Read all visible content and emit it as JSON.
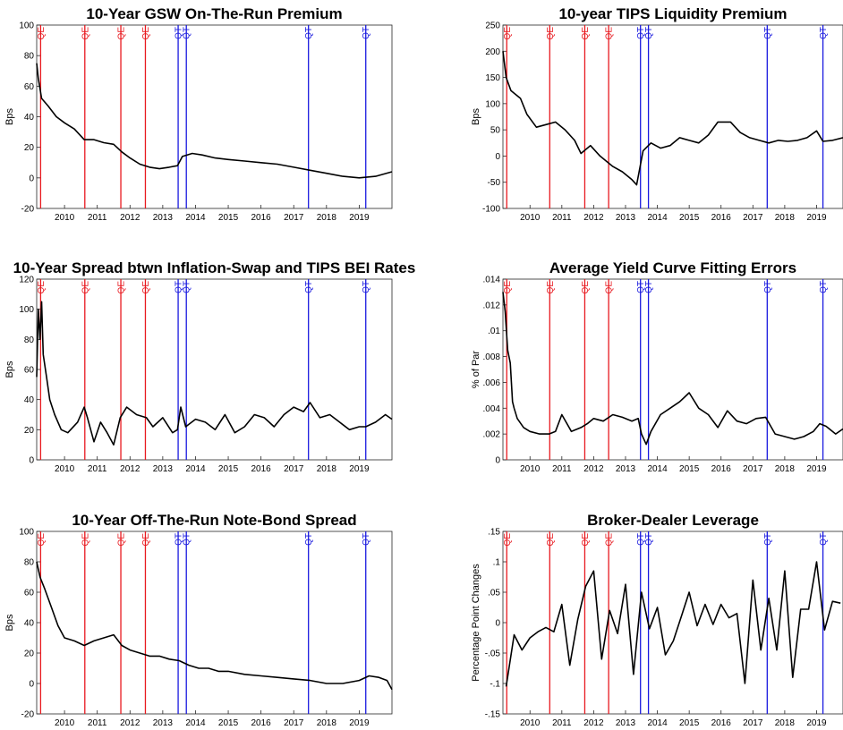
{
  "colors": {
    "line": "#000000",
    "qe": "#e8191f",
    "qt": "#1a1adf",
    "axis": "#262626"
  },
  "chart_data": [
    {
      "type": "line",
      "title": "10-Year GSW On-The-Run Premium",
      "ylabel": "Bps",
      "xlim": [
        2009.15,
        2020.0
      ],
      "ylim": [
        -20,
        100
      ],
      "yticks": [
        -20,
        0,
        20,
        40,
        60,
        80,
        100
      ],
      "xticks": [
        2010,
        2011,
        2012,
        2013,
        2014,
        2015,
        2016,
        2017,
        2018,
        2019
      ],
      "events": [
        {
          "label": "QE",
          "x": 2009.27
        },
        {
          "label": "QE",
          "x": 2010.62
        },
        {
          "label": "QE",
          "x": 2011.72
        },
        {
          "label": "QE",
          "x": 2012.47
        },
        {
          "label": "QT",
          "x": 2013.47
        },
        {
          "label": "QT",
          "x": 2013.72
        },
        {
          "label": "QT",
          "x": 2017.45
        },
        {
          "label": "QT",
          "x": 2019.2
        }
      ],
      "series": [
        {
          "x": [
            2009.15,
            2009.2,
            2009.3,
            2009.5,
            2009.75,
            2010.0,
            2010.3,
            2010.6,
            2010.9,
            2011.2,
            2011.5,
            2011.75,
            2012.0,
            2012.3,
            2012.6,
            2012.9,
            2013.2,
            2013.45,
            2013.6,
            2013.9,
            2014.2,
            2014.6,
            2015.0,
            2015.5,
            2016.0,
            2016.5,
            2017.0,
            2017.5,
            2018.0,
            2018.5,
            2019.0,
            2019.5,
            2020.0
          ],
          "values": [
            75,
            65,
            52,
            47,
            40,
            36,
            32,
            25,
            25,
            23,
            22,
            17,
            13,
            9,
            7,
            6,
            7,
            8,
            14,
            16,
            15,
            13,
            12,
            11,
            10,
            9,
            7,
            5,
            3,
            1,
            0,
            1,
            4
          ]
        }
      ]
    },
    {
      "type": "line",
      "title": "10-year TIPS Liquidity Premium",
      "ylabel": "Bps",
      "xlim": [
        2009.15,
        2019.83
      ],
      "ylim": [
        -100,
        250
      ],
      "yticks": [
        -100,
        -50,
        0,
        50,
        100,
        150,
        200,
        250
      ],
      "xticks": [
        2010,
        2011,
        2012,
        2013,
        2014,
        2015,
        2016,
        2017,
        2018,
        2019
      ],
      "events": [
        {
          "label": "QE",
          "x": 2009.27
        },
        {
          "label": "QE",
          "x": 2010.62
        },
        {
          "label": "QE",
          "x": 2011.72
        },
        {
          "label": "QE",
          "x": 2012.47
        },
        {
          "label": "QT",
          "x": 2013.47
        },
        {
          "label": "QT",
          "x": 2013.72
        },
        {
          "label": "QT",
          "x": 2017.45
        },
        {
          "label": "QT",
          "x": 2019.2
        }
      ],
      "series": [
        {
          "x": [
            2009.15,
            2009.25,
            2009.4,
            2009.7,
            2009.9,
            2010.2,
            2010.5,
            2010.8,
            2011.1,
            2011.4,
            2011.6,
            2011.9,
            2012.2,
            2012.6,
            2012.9,
            2013.2,
            2013.35,
            2013.55,
            2013.8,
            2014.1,
            2014.4,
            2014.7,
            2015.0,
            2015.3,
            2015.6,
            2015.9,
            2016.3,
            2016.6,
            2016.9,
            2017.2,
            2017.5,
            2017.8,
            2018.1,
            2018.4,
            2018.7,
            2019.0,
            2019.2,
            2019.5,
            2019.83
          ],
          "values": [
            200,
            150,
            125,
            110,
            80,
            55,
            60,
            65,
            50,
            30,
            5,
            20,
            0,
            -20,
            -30,
            -45,
            -55,
            10,
            25,
            15,
            20,
            35,
            30,
            25,
            40,
            65,
            65,
            45,
            35,
            30,
            25,
            30,
            28,
            30,
            35,
            48,
            28,
            30,
            35
          ]
        }
      ]
    },
    {
      "type": "line",
      "title": "10-Year Spread btwn Inflation-Swap and TIPS BEI Rates",
      "ylabel": "Bps",
      "xlim": [
        2009.15,
        2020.0
      ],
      "ylim": [
        0,
        120
      ],
      "yticks": [
        0,
        20,
        40,
        60,
        80,
        100,
        120
      ],
      "xticks": [
        2010,
        2011,
        2012,
        2013,
        2014,
        2015,
        2016,
        2017,
        2018,
        2019
      ],
      "events": [
        {
          "label": "QE",
          "x": 2009.27
        },
        {
          "label": "QE",
          "x": 2010.62
        },
        {
          "label": "QE",
          "x": 2011.72
        },
        {
          "label": "QE",
          "x": 2012.47
        },
        {
          "label": "QT",
          "x": 2013.47
        },
        {
          "label": "QT",
          "x": 2013.72
        },
        {
          "label": "QT",
          "x": 2017.45
        },
        {
          "label": "QT",
          "x": 2019.2
        }
      ],
      "series": [
        {
          "x": [
            2009.15,
            2009.2,
            2009.25,
            2009.3,
            2009.35,
            2009.45,
            2009.55,
            2009.7,
            2009.9,
            2010.1,
            2010.4,
            2010.6,
            2010.7,
            2010.9,
            2011.1,
            2011.3,
            2011.5,
            2011.7,
            2011.9,
            2012.2,
            2012.5,
            2012.7,
            2013.0,
            2013.3,
            2013.45,
            2013.55,
            2013.7,
            2014.0,
            2014.3,
            2014.6,
            2014.9,
            2015.2,
            2015.5,
            2015.8,
            2016.1,
            2016.4,
            2016.7,
            2017.0,
            2017.3,
            2017.5,
            2017.8,
            2018.1,
            2018.4,
            2018.7,
            2019.0,
            2019.2,
            2019.5,
            2019.8,
            2020.0
          ],
          "values": [
            55,
            100,
            80,
            105,
            70,
            55,
            40,
            30,
            20,
            18,
            25,
            35,
            28,
            12,
            25,
            18,
            10,
            28,
            35,
            30,
            28,
            22,
            28,
            18,
            20,
            35,
            22,
            27,
            25,
            20,
            30,
            18,
            22,
            30,
            28,
            22,
            30,
            35,
            32,
            38,
            28,
            30,
            25,
            20,
            22,
            22,
            25,
            30,
            27
          ]
        }
      ]
    },
    {
      "type": "line",
      "title": "Average Yield Curve Fitting Errors",
      "ylabel": "% of Par",
      "xlim": [
        2009.15,
        2019.83
      ],
      "ylim": [
        0,
        0.014
      ],
      "yticks": [
        0,
        0.002,
        0.004,
        0.006,
        0.008,
        0.01,
        0.012,
        0.014
      ],
      "xticks": [
        2010,
        2011,
        2012,
        2013,
        2014,
        2015,
        2016,
        2017,
        2018,
        2019
      ],
      "events": [
        {
          "label": "QE",
          "x": 2009.27
        },
        {
          "label": "QE",
          "x": 2010.62
        },
        {
          "label": "QE",
          "x": 2011.72
        },
        {
          "label": "QE",
          "x": 2012.47
        },
        {
          "label": "QT",
          "x": 2013.47
        },
        {
          "label": "QT",
          "x": 2013.72
        },
        {
          "label": "QT",
          "x": 2017.45
        },
        {
          "label": "QT",
          "x": 2019.2
        }
      ],
      "series": [
        {
          "x": [
            2009.15,
            2009.22,
            2009.3,
            2009.38,
            2009.45,
            2009.5,
            2009.6,
            2009.8,
            2010.0,
            2010.3,
            2010.6,
            2010.8,
            2011.0,
            2011.3,
            2011.6,
            2011.8,
            2012.0,
            2012.3,
            2012.6,
            2012.9,
            2013.2,
            2013.4,
            2013.5,
            2013.65,
            2013.8,
            2014.1,
            2014.4,
            2014.7,
            2015.0,
            2015.3,
            2015.6,
            2015.9,
            2016.2,
            2016.5,
            2016.8,
            2017.1,
            2017.4,
            2017.7,
            2018.0,
            2018.3,
            2018.6,
            2018.9,
            2019.1,
            2019.3,
            2019.6,
            2019.83
          ],
          "values": [
            0.013,
            0.0115,
            0.0085,
            0.0075,
            0.0045,
            0.004,
            0.0032,
            0.0025,
            0.0022,
            0.002,
            0.002,
            0.0022,
            0.0035,
            0.0022,
            0.0025,
            0.0028,
            0.0032,
            0.003,
            0.0035,
            0.0033,
            0.003,
            0.0032,
            0.002,
            0.0012,
            0.0022,
            0.0035,
            0.004,
            0.0045,
            0.0052,
            0.004,
            0.0035,
            0.0025,
            0.0038,
            0.003,
            0.0028,
            0.0032,
            0.0033,
            0.002,
            0.0018,
            0.0016,
            0.0018,
            0.0022,
            0.0028,
            0.0026,
            0.002,
            0.0024
          ]
        }
      ]
    },
    {
      "type": "line",
      "title": "10-Year Off-The-Run Note-Bond Spread",
      "ylabel": "Bps",
      "xlim": [
        2009.15,
        2020.0
      ],
      "ylim": [
        -20,
        100
      ],
      "yticks": [
        -20,
        0,
        20,
        40,
        60,
        80,
        100
      ],
      "xticks": [
        2010,
        2011,
        2012,
        2013,
        2014,
        2015,
        2016,
        2017,
        2018,
        2019
      ],
      "events": [
        {
          "label": "QE",
          "x": 2009.27
        },
        {
          "label": "QE",
          "x": 2010.62
        },
        {
          "label": "QE",
          "x": 2011.72
        },
        {
          "label": "QE",
          "x": 2012.47
        },
        {
          "label": "QT",
          "x": 2013.47
        },
        {
          "label": "QT",
          "x": 2013.72
        },
        {
          "label": "QT",
          "x": 2017.45
        },
        {
          "label": "QT",
          "x": 2019.2
        }
      ],
      "series": [
        {
          "x": [
            2009.15,
            2009.25,
            2009.4,
            2009.6,
            2009.8,
            2010.0,
            2010.3,
            2010.6,
            2010.9,
            2011.2,
            2011.5,
            2011.75,
            2012.0,
            2012.3,
            2012.6,
            2012.9,
            2013.2,
            2013.5,
            2013.8,
            2014.1,
            2014.4,
            2014.7,
            2015.0,
            2015.5,
            2016.0,
            2016.5,
            2017.0,
            2017.5,
            2018.0,
            2018.5,
            2019.0,
            2019.3,
            2019.6,
            2019.85,
            2020.0
          ],
          "values": [
            80,
            70,
            62,
            50,
            38,
            30,
            28,
            25,
            28,
            30,
            32,
            25,
            22,
            20,
            18,
            18,
            16,
            15,
            12,
            10,
            10,
            8,
            8,
            6,
            5,
            4,
            3,
            2,
            0,
            0,
            2,
            5,
            4,
            2,
            -4
          ]
        }
      ]
    },
    {
      "type": "line",
      "title": "Broker-Dealer Leverage",
      "ylabel": "Percentage Point Changes",
      "xlim": [
        2009.15,
        2019.83
      ],
      "ylim": [
        -0.15,
        0.15
      ],
      "yticks": [
        -0.15,
        -0.1,
        -0.05,
        0,
        0.05,
        0.1,
        0.15
      ],
      "xticks": [
        2010,
        2011,
        2012,
        2013,
        2014,
        2015,
        2016,
        2017,
        2018,
        2019
      ],
      "events": [
        {
          "label": "QE",
          "x": 2009.27
        },
        {
          "label": "QE",
          "x": 2010.62
        },
        {
          "label": "QE",
          "x": 2011.72
        },
        {
          "label": "QE",
          "x": 2012.47
        },
        {
          "label": "QT",
          "x": 2013.47
        },
        {
          "label": "QT",
          "x": 2013.72
        },
        {
          "label": "QT",
          "x": 2017.45
        },
        {
          "label": "QT",
          "x": 2019.2
        }
      ],
      "series": [
        {
          "x": [
            2009.25,
            2009.5,
            2009.75,
            2010.0,
            2010.25,
            2010.5,
            2010.75,
            2011.0,
            2011.25,
            2011.5,
            2011.75,
            2012.0,
            2012.25,
            2012.5,
            2012.75,
            2013.0,
            2013.25,
            2013.5,
            2013.75,
            2014.0,
            2014.25,
            2014.5,
            2014.75,
            2015.0,
            2015.25,
            2015.5,
            2015.75,
            2016.0,
            2016.25,
            2016.5,
            2016.75,
            2017.0,
            2017.25,
            2017.5,
            2017.75,
            2018.0,
            2018.25,
            2018.5,
            2018.75,
            2019.0,
            2019.25,
            2019.5,
            2019.75
          ],
          "values": [
            -0.105,
            -0.02,
            -0.045,
            -0.025,
            -0.015,
            -0.008,
            -0.015,
            0.03,
            -0.07,
            0.005,
            0.06,
            0.085,
            -0.06,
            0.02,
            -0.018,
            0.063,
            -0.085,
            0.05,
            -0.01,
            0.025,
            -0.053,
            -0.03,
            0.01,
            0.05,
            -0.005,
            0.03,
            -0.003,
            0.03,
            0.008,
            0.015,
            -0.1,
            0.07,
            -0.045,
            0.04,
            -0.045,
            0.085,
            -0.09,
            0.022,
            0.022,
            0.1,
            -0.012,
            0.035,
            0.032
          ]
        }
      ]
    }
  ]
}
